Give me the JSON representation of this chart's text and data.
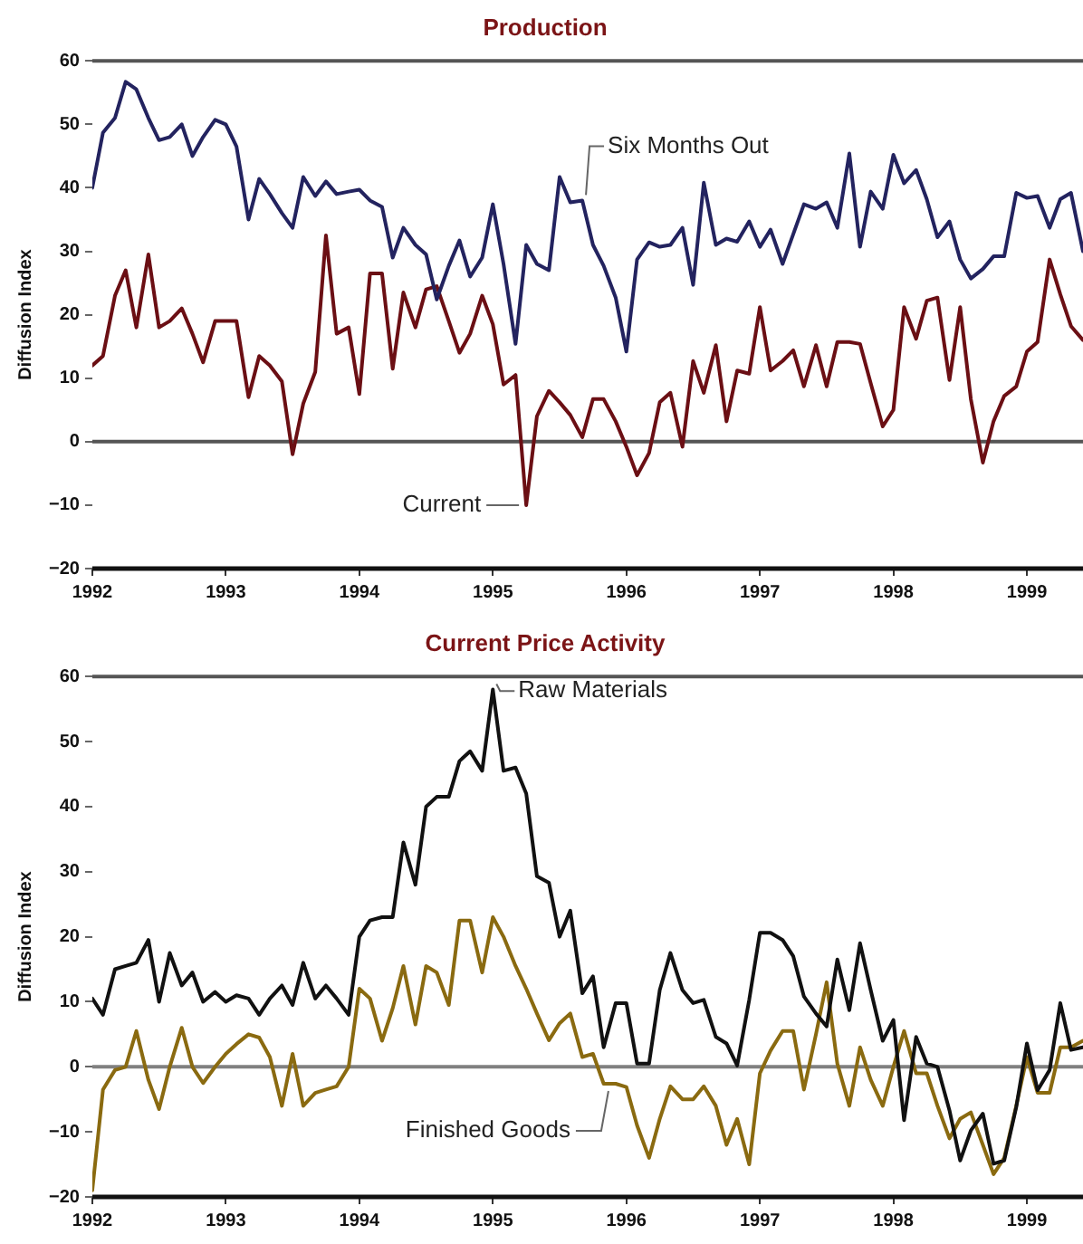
{
  "chart_data": [
    {
      "type": "line",
      "title": "Production",
      "ylabel": "Diffusion Index",
      "x": [
        1992,
        1992.08,
        1992.17,
        1992.25,
        1992.33,
        1992.42,
        1992.5,
        1992.58,
        1992.67,
        1992.75,
        1992.83,
        1992.92,
        1993,
        1993.08,
        1993.17,
        1993.25,
        1993.33,
        1993.42,
        1993.5,
        1993.58,
        1993.67,
        1993.75,
        1993.83,
        1993.92,
        1994,
        1994.08,
        1994.17,
        1994.25,
        1994.33,
        1994.42,
        1994.5,
        1994.58,
        1994.67,
        1994.75,
        1994.83,
        1994.92,
        1995,
        1995.08,
        1995.17,
        1995.25,
        1995.33,
        1995.42,
        1995.5,
        1995.58,
        1995.67,
        1995.75,
        1995.83,
        1995.92,
        1996,
        1996.08,
        1996.17,
        1996.25,
        1996.33,
        1996.42,
        1996.5,
        1996.58,
        1996.67,
        1996.75,
        1996.83,
        1996.92,
        1997,
        1997.08,
        1997.17,
        1997.25,
        1997.33,
        1997.42,
        1997.5,
        1997.58,
        1997.67,
        1997.75,
        1997.83,
        1997.92,
        1998,
        1998.08,
        1998.17,
        1998.25,
        1998.33,
        1998.42,
        1998.5,
        1998.58,
        1998.67,
        1998.75,
        1998.83,
        1998.92,
        1999,
        1999.08,
        1999.17,
        1999.25,
        1999.33,
        1999.42
      ],
      "series": [
        {
          "name": "Six Months Out",
          "color": "#23235f",
          "values": [
            40,
            48.7,
            51,
            56.7,
            55.5,
            51,
            47.5,
            48,
            50,
            45,
            48,
            50.7,
            50,
            46.5,
            35,
            41.4,
            39,
            36,
            33.7,
            41.7,
            38.7,
            41,
            39,
            39.4,
            39.7,
            38,
            37,
            29,
            33.7,
            31,
            29.5,
            22.4,
            27.7,
            31.7,
            26,
            29,
            37.4,
            28,
            15.4,
            31,
            28,
            27,
            41.7,
            37.7,
            38,
            31,
            27.7,
            22.7,
            14.2,
            28.7,
            31.4,
            30.7,
            31,
            33.7,
            24.7,
            40.8,
            31,
            32,
            31.5,
            34.7,
            30.7,
            33.4,
            28,
            32.7,
            37.4,
            36.7,
            37.7,
            33.7,
            45.4,
            30.7,
            39.4,
            36.7,
            45.2,
            40.7,
            42.8,
            38.2,
            32.2,
            34.7,
            28.7,
            25.7,
            27.2,
            29.2,
            29.2,
            39.2,
            38.4,
            38.7,
            33.7,
            38.2,
            39.2,
            30
          ]
        },
        {
          "name": "Current",
          "color": "#6b0f14",
          "values": [
            12,
            13.5,
            23,
            27,
            18,
            29.5,
            18,
            19,
            21,
            17,
            12.5,
            19,
            19,
            19,
            7,
            13.5,
            12,
            9.5,
            -2,
            6,
            11,
            32.5,
            17,
            18,
            7.5,
            26.5,
            26.5,
            11.5,
            23.5,
            18,
            24,
            24.5,
            19,
            14,
            17,
            23,
            18.5,
            9,
            10.5,
            -10,
            4,
            8,
            6.2,
            4.2,
            0.7,
            6.7,
            6.7,
            3.2,
            -0.8,
            -5.3,
            -1.8,
            6.2,
            7.7,
            -0.8,
            12.7,
            7.7,
            15.2,
            3.2,
            11.2,
            10.7,
            21.2,
            11.2,
            12.7,
            14.4,
            8.7,
            15.2,
            8.7,
            15.7,
            15.7,
            15.4,
            9.2,
            2.4,
            5,
            21.2,
            16.2,
            22.2,
            22.7,
            9.7,
            21.2,
            6.7,
            -3.3,
            3.2,
            7.2,
            8.7,
            14.2,
            15.7,
            28.7,
            23.2,
            18.2,
            16
          ]
        }
      ],
      "xlim": [
        1992,
        1999.42
      ],
      "xticks": [
        1992,
        1993,
        1994,
        1995,
        1996,
        1997,
        1998,
        1999
      ],
      "ylim": [
        -20,
        60
      ],
      "yticks": [
        -20,
        -10,
        0,
        10,
        20,
        30,
        40,
        50,
        60
      ],
      "ref_lines": [
        {
          "axis": "y",
          "value": 0,
          "color": "#555555"
        }
      ],
      "legend": false,
      "marker": "none",
      "line_style": "solid"
    },
    {
      "type": "line",
      "title": "Current Price Activity",
      "ylabel": "Diffusion Index",
      "x": [
        1992,
        1992.08,
        1992.17,
        1992.25,
        1992.33,
        1992.42,
        1992.5,
        1992.58,
        1992.67,
        1992.75,
        1992.83,
        1992.92,
        1993,
        1993.08,
        1993.17,
        1993.25,
        1993.33,
        1993.42,
        1993.5,
        1993.58,
        1993.67,
        1993.75,
        1993.83,
        1993.92,
        1994,
        1994.08,
        1994.17,
        1994.25,
        1994.33,
        1994.42,
        1994.5,
        1994.58,
        1994.67,
        1994.75,
        1994.83,
        1994.92,
        1995,
        1995.08,
        1995.17,
        1995.25,
        1995.33,
        1995.42,
        1995.5,
        1995.58,
        1995.67,
        1995.75,
        1995.83,
        1995.92,
        1996,
        1996.08,
        1996.17,
        1996.25,
        1996.33,
        1996.42,
        1996.5,
        1996.58,
        1996.67,
        1996.75,
        1996.83,
        1996.92,
        1997,
        1997.08,
        1997.17,
        1997.25,
        1997.33,
        1997.42,
        1997.5,
        1997.58,
        1997.67,
        1997.75,
        1997.83,
        1997.92,
        1998,
        1998.08,
        1998.17,
        1998.25,
        1998.33,
        1998.42,
        1998.5,
        1998.58,
        1998.67,
        1998.75,
        1998.83,
        1998.92,
        1999,
        1999.08,
        1999.17,
        1999.25,
        1999.33,
        1999.42
      ],
      "series": [
        {
          "name": "Raw Materials",
          "color": "#111111",
          "values": [
            10.5,
            8,
            15,
            15.5,
            16,
            19.5,
            10,
            17.5,
            12.5,
            14.5,
            10,
            11.5,
            10,
            11,
            10.5,
            8,
            10.5,
            12.5,
            9.5,
            16,
            10.5,
            12.5,
            10.5,
            8,
            20,
            22.5,
            23,
            23,
            34.5,
            28,
            40,
            41.5,
            41.5,
            47,
            48.5,
            45.5,
            58,
            45.5,
            46,
            42,
            29.3,
            28.3,
            20,
            24,
            11.3,
            13.9,
            3,
            9.8,
            9.8,
            0.5,
            0.5,
            11.8,
            17.5,
            11.8,
            9.8,
            10.3,
            4.6,
            3.6,
            0.2,
            10.3,
            20.6,
            20.6,
            19.5,
            17,
            10.8,
            8.2,
            6.2,
            16.5,
            8.7,
            19,
            11.8,
            4,
            7.2,
            -8.2,
            4.6,
            0.5,
            0,
            -6.7,
            -14.4,
            -9.8,
            -7.2,
            -14.9,
            -14.4,
            -6.2,
            3.6,
            -3.6,
            -0.5,
            9.8,
            2.6,
            3
          ]
        },
        {
          "name": "Finished Goods",
          "color": "#8a6a10",
          "values": [
            -19,
            -3.5,
            -0.5,
            0,
            5.5,
            -2,
            -6.5,
            0,
            6,
            0,
            -2.5,
            0,
            2,
            3.5,
            5,
            4.5,
            1.5,
            -6,
            2,
            -6,
            -4,
            -3.5,
            -3,
            0,
            12,
            10.5,
            4,
            9,
            15.5,
            6.5,
            15.5,
            14.5,
            9.5,
            22.5,
            22.5,
            14.5,
            23,
            20,
            15.5,
            12,
            8.2,
            4.1,
            6.7,
            8.2,
            1.5,
            2,
            -2.6,
            -2.6,
            -3.1,
            -9,
            -14,
            -8,
            -3,
            -5,
            -5,
            -3,
            -6,
            -12,
            -8,
            -15,
            -1,
            2.5,
            5.5,
            5.5,
            -3.5,
            5,
            13,
            0.5,
            -6,
            3,
            -2,
            -6,
            0,
            5.5,
            -1,
            -1,
            -6,
            -11,
            -8,
            -7,
            -12,
            -16.5,
            -14,
            -6,
            1.5,
            -4,
            -4,
            3,
            3,
            4
          ]
        }
      ],
      "xlim": [
        1992,
        1999.42
      ],
      "xticks": [
        1992,
        1993,
        1994,
        1995,
        1996,
        1997,
        1998,
        1999
      ],
      "ylim": [
        -20,
        60
      ],
      "yticks": [
        -20,
        -10,
        0,
        10,
        20,
        30,
        40,
        50,
        60
      ],
      "ref_lines": [
        {
          "axis": "y",
          "value": 0,
          "color": "#808080"
        }
      ],
      "legend": false,
      "marker": "none",
      "line_style": "solid"
    }
  ]
}
